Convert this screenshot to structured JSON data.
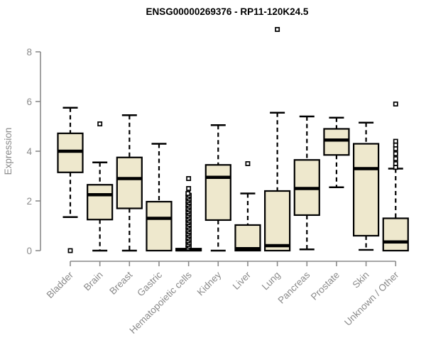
{
  "chart_data": {
    "type": "boxplot",
    "title": "ENSG00000269376 - RP11-120K24.5",
    "ylabel": "Expression",
    "xlabel": "",
    "ylim": [
      0,
      8
    ],
    "yticks": [
      0,
      2,
      4,
      6,
      8
    ],
    "grid": false,
    "legend": false,
    "colors": {
      "box_fill": "#EEE8CD",
      "box_edge": "#000000",
      "median": "#000000",
      "whisker": "#000000",
      "axis": "#8a8a8a",
      "axis_text": "#8a8a8a",
      "title_text": "#000000",
      "background": "#ffffff"
    },
    "categories": [
      "Bladder",
      "Brain",
      "Breast",
      "Gastric",
      "Hematopoietic cells",
      "Kidney",
      "Liver",
      "Lung",
      "Pancreas",
      "Prostate",
      "Skin",
      "Unknown / Other"
    ],
    "series": [
      {
        "category": "Bladder",
        "whisker_low": 1.35,
        "q1": 3.15,
        "median": 4.0,
        "q3": 4.72,
        "whisker_high": 5.75,
        "outliers": [
          0.0
        ]
      },
      {
        "category": "Brain",
        "whisker_low": 0.0,
        "q1": 1.25,
        "median": 2.25,
        "q3": 2.65,
        "whisker_high": 3.55,
        "outliers": [
          5.1
        ]
      },
      {
        "category": "Breast",
        "whisker_low": 0.0,
        "q1": 1.7,
        "median": 2.9,
        "q3": 3.75,
        "whisker_high": 5.45,
        "outliers": []
      },
      {
        "category": "Gastric",
        "whisker_low": 0.0,
        "q1": 0.0,
        "median": 1.3,
        "q3": 1.97,
        "whisker_high": 4.3,
        "outliers": []
      },
      {
        "category": "Hematopoietic cells",
        "whisker_low": 0.0,
        "q1": 0.0,
        "median": 0.03,
        "q3": 0.08,
        "whisker_high": 0.12,
        "outliers": [
          2.9,
          2.5
        ],
        "outlier_dense_range": [
          0.1,
          2.3
        ]
      },
      {
        "category": "Kidney",
        "whisker_low": 0.0,
        "q1": 1.23,
        "median": 2.95,
        "q3": 3.45,
        "whisker_high": 5.05,
        "outliers": []
      },
      {
        "category": "Liver",
        "whisker_low": 0.0,
        "q1": 0.0,
        "median": 0.08,
        "q3": 1.03,
        "whisker_high": 2.3,
        "outliers": [
          3.5
        ]
      },
      {
        "category": "Lung",
        "whisker_low": 0.0,
        "q1": 0.0,
        "median": 0.2,
        "q3": 2.4,
        "whisker_high": 5.55,
        "outliers": [
          8.9
        ]
      },
      {
        "category": "Pancreas",
        "whisker_low": 0.05,
        "q1": 1.43,
        "median": 2.5,
        "q3": 3.65,
        "whisker_high": 5.4,
        "outliers": []
      },
      {
        "category": "Prostate",
        "whisker_low": 2.55,
        "q1": 3.85,
        "median": 4.45,
        "q3": 4.9,
        "whisker_high": 5.35,
        "outliers": []
      },
      {
        "category": "Skin",
        "whisker_low": 0.03,
        "q1": 0.6,
        "median": 3.3,
        "q3": 4.3,
        "whisker_high": 5.15,
        "outliers": []
      },
      {
        "category": "Unknown / Other",
        "whisker_low": 0.0,
        "q1": 0.0,
        "median": 0.35,
        "q3": 1.3,
        "whisker_high": 3.3,
        "outliers": [
          5.9,
          4.4,
          4.25,
          4.1,
          3.9,
          3.7,
          3.5,
          3.35
        ]
      }
    ]
  }
}
